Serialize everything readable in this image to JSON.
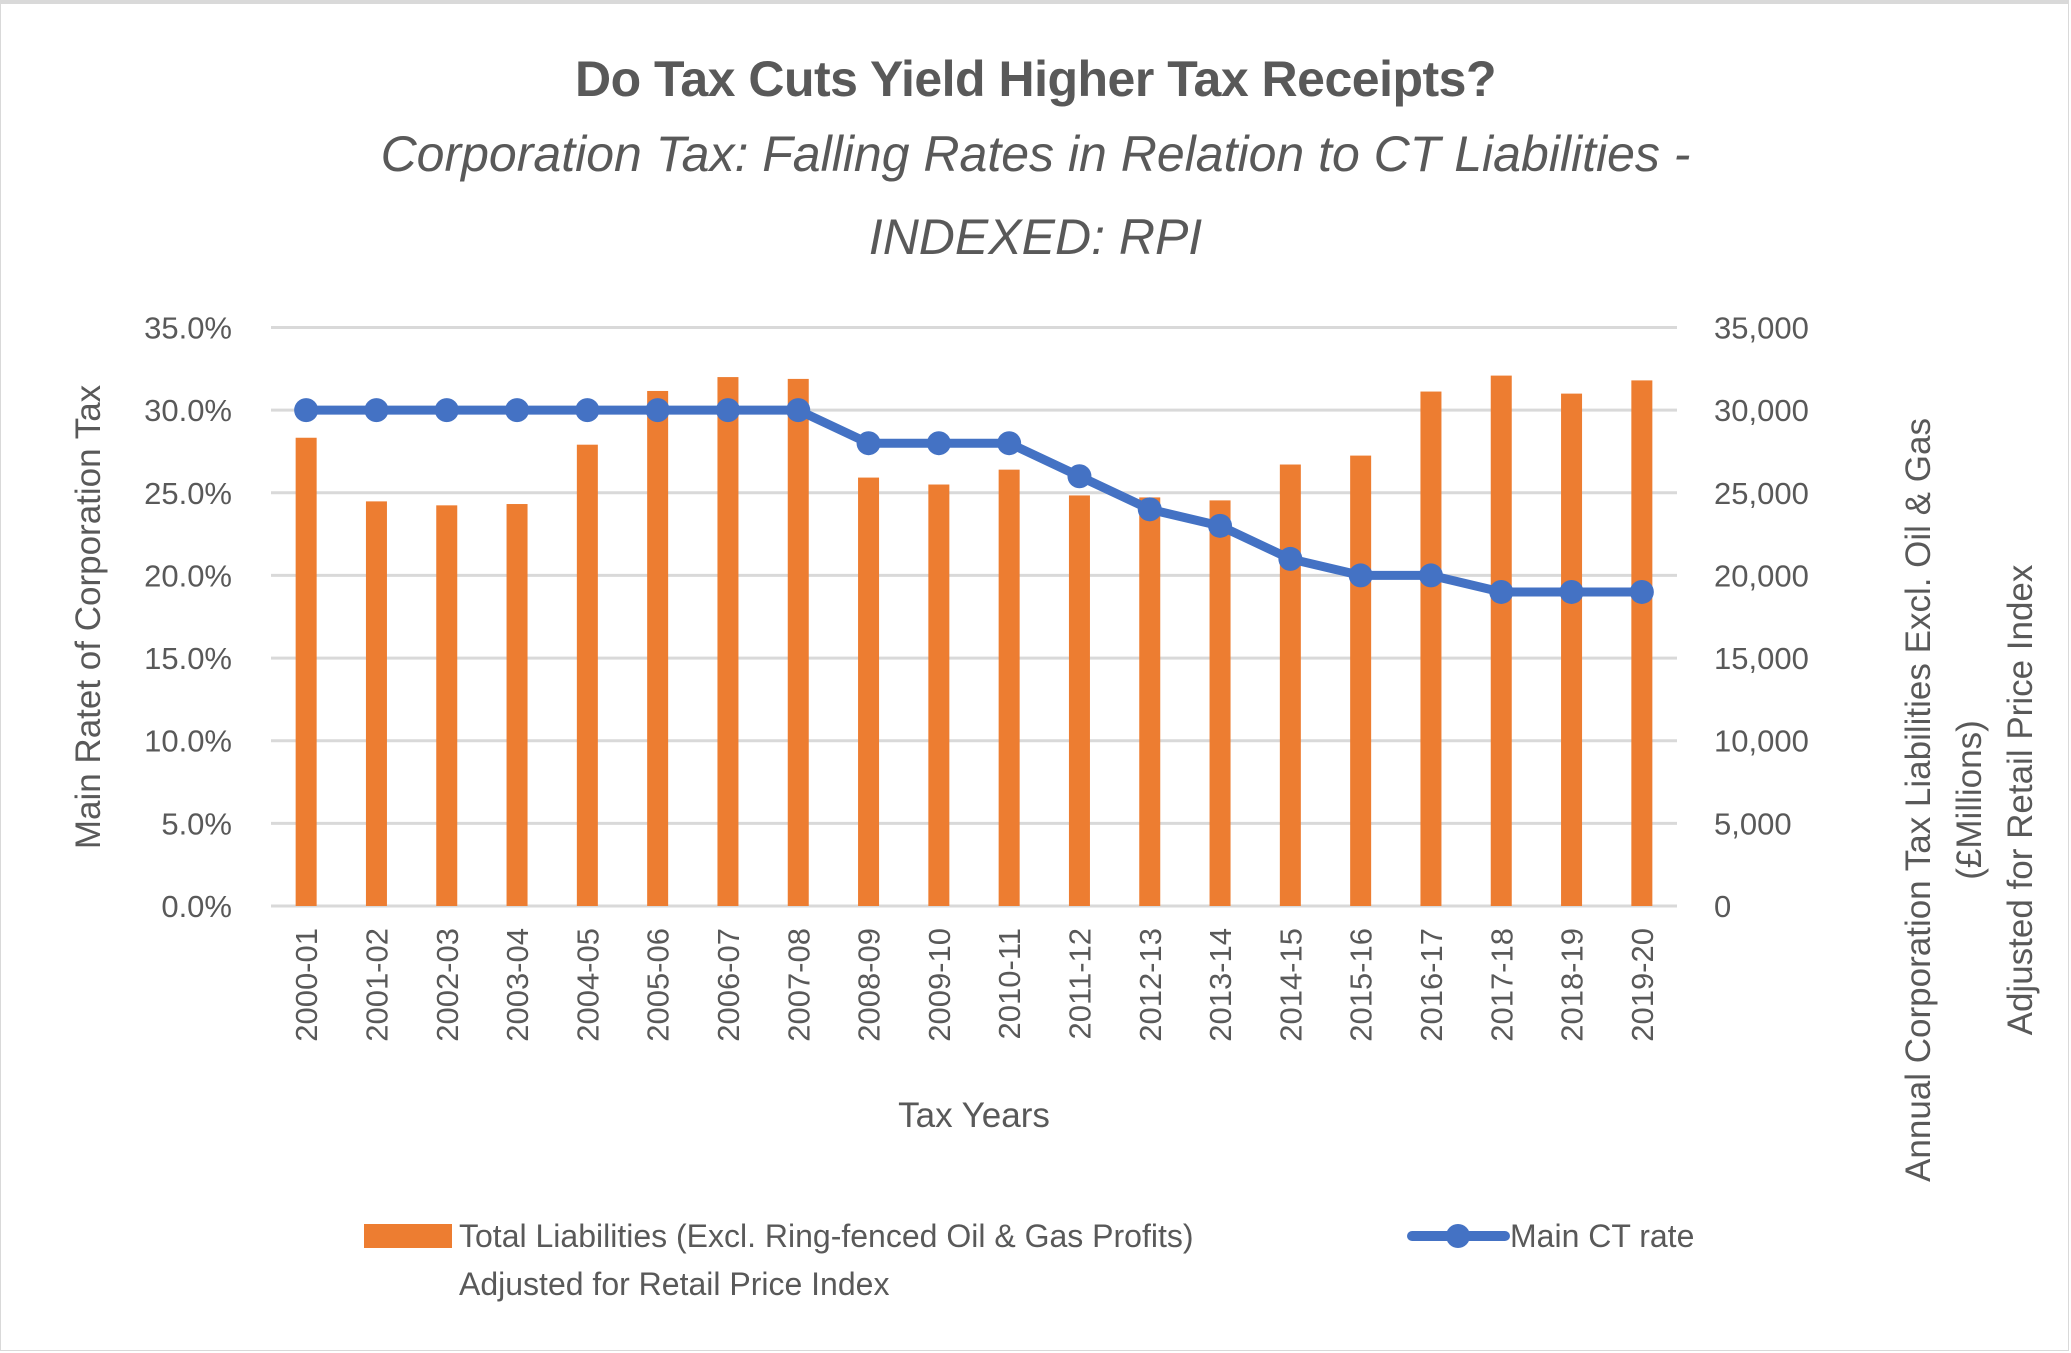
{
  "chart_data": {
    "type": "bar",
    "title": "Do Tax Cuts Yield Higher Tax Receipts?",
    "subtitle_lines": [
      "Corporation Tax: Falling Rates in Relation to CT Liabilities -",
      "INDEXED: RPI"
    ],
    "xlabel": "Tax Years",
    "ylabel_left": "Main Ratet of Corporation Tax",
    "ylabel_right_lines": [
      "Annual Corporation Tax Liabilities Excl. Oil & Gas",
      "(£Millions)",
      "Adjusted for Retail Price Index"
    ],
    "categories": [
      "2000-01",
      "2001-02",
      "2002-03",
      "2003-04",
      "2004-05",
      "2005-06",
      "2006-07",
      "2007-08",
      "2008-09",
      "2009-10",
      "2010-11",
      "2011-12",
      "2012-13",
      "2013-14",
      "2014-15",
      "2015-16",
      "2016-17",
      "2017-18",
      "2018-19",
      "2019-20"
    ],
    "series": [
      {
        "name": "Total Liabilities (Excl. Ring-fenced Oil & Gas Profits) Adjusted for Retail Price Index",
        "legend_lines": [
          "Total Liabilities (Excl. Ring-fenced Oil & Gas Profits)",
          "Adjusted for Retail Price Index"
        ],
        "type": "bar",
        "axis": "right",
        "color": "#ED7D31",
        "values": [
          28330,
          24480,
          24240,
          24320,
          27910,
          31160,
          32000,
          31890,
          25920,
          25500,
          26400,
          24840,
          24720,
          24540,
          26710,
          27250,
          31125,
          32090,
          31000,
          31800
        ]
      },
      {
        "name": "Main CT rate",
        "legend_lines": [
          "Main CT rate"
        ],
        "type": "line",
        "axis": "left",
        "color": "#4472C4",
        "values": [
          30,
          30,
          30,
          30,
          30,
          30,
          30,
          30,
          28,
          28,
          28,
          26,
          24,
          23,
          21,
          20,
          20,
          19,
          19,
          19
        ]
      }
    ],
    "y_left": {
      "min": 0,
      "max": 35,
      "step": 5,
      "ticks": [
        "0.0%",
        "5.0%",
        "10.0%",
        "15.0%",
        "20.0%",
        "25.0%",
        "30.0%",
        "35.0%"
      ]
    },
    "y_right": {
      "min": 0,
      "max": 35000,
      "step": 5000,
      "ticks": [
        "0",
        "5,000",
        "10,000",
        "15,000",
        "20,000",
        "25,000",
        "30,000",
        "35,000"
      ]
    },
    "grid": true,
    "legend_position": "bottom",
    "gridline_color": "#D9D9D9",
    "text_color": "#595959"
  }
}
